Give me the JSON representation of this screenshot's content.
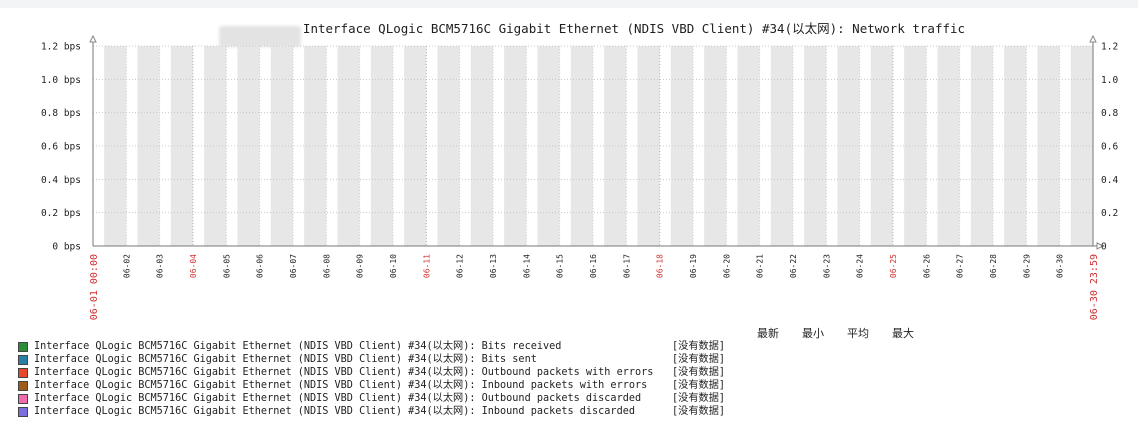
{
  "chart_data": {
    "type": "area",
    "title": "Interface QLogic BCM5716C Gigabit Ethernet (NDIS VBD Client) #34(以太网): Network traffic",
    "y_ticks_left": [
      "0 bps",
      "0.2 bps",
      "0.4 bps",
      "0.6 bps",
      "0.8 bps",
      "1.0 bps",
      "1.2 bps"
    ],
    "y_ticks_right": [
      "0",
      "0.2",
      "0.4",
      "0.6",
      "0.8",
      "1.0",
      "1.2"
    ],
    "ylim": [
      0,
      1.2
    ],
    "x_start_label": "06-01 00:00",
    "x_end_label": "06-30 23:59",
    "x_tick_labels": [
      "06-02",
      "06-03",
      "06-04",
      "06-05",
      "06-06",
      "06-07",
      "06-08",
      "06-09",
      "06-10",
      "06-11",
      "06-12",
      "06-13",
      "06-14",
      "06-15",
      "06-16",
      "06-17",
      "06-18",
      "06-19",
      "06-20",
      "06-21",
      "06-22",
      "06-23",
      "06-24",
      "06-25",
      "06-26",
      "06-27",
      "06-28",
      "06-29",
      "06-30"
    ],
    "x_major_ticks": [
      "06-04",
      "06-11",
      "06-18",
      "06-25"
    ],
    "grid": true,
    "series": [
      {
        "name": "Interface QLogic BCM5716C Gigabit Ethernet (NDIS VBD Client) #34(以太网): Bits received",
        "color": "#2e8b3a",
        "values": []
      },
      {
        "name": "Interface QLogic BCM5716C Gigabit Ethernet (NDIS VBD Client) #34(以太网): Bits sent",
        "color": "#2a7fa8",
        "values": []
      },
      {
        "name": "Interface QLogic BCM5716C Gigabit Ethernet (NDIS VBD Client) #34(以太网): Outbound packets with errors",
        "color": "#e8482a",
        "values": []
      },
      {
        "name": "Interface QLogic BCM5716C Gigabit Ethernet (NDIS VBD Client) #34(以太网): Inbound packets with errors",
        "color": "#a05a1a",
        "values": []
      },
      {
        "name": "Interface QLogic BCM5716C Gigabit Ethernet (NDIS VBD Client) #34(以太网): Outbound packets discarded",
        "color": "#f06bb0",
        "values": []
      },
      {
        "name": "Interface QLogic BCM5716C Gigabit Ethernet (NDIS VBD Client) #34(以太网): Inbound packets discarded",
        "color": "#7b6fe0",
        "values": []
      }
    ]
  },
  "legend": {
    "status_text": "[没有数据]",
    "stat_headers": [
      "最新",
      "最小",
      "平均",
      "最大"
    ]
  }
}
